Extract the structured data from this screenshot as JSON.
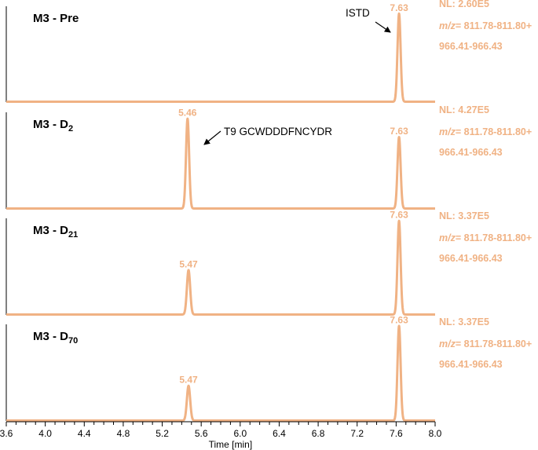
{
  "chart_data": {
    "type": "line",
    "xlabel": "Time [min]",
    "xlim": [
      3.6,
      8.0
    ],
    "x_ticks": [
      "3.6",
      "4.0",
      "4.4",
      "4.8",
      "5.2",
      "5.6",
      "6.0",
      "6.4",
      "6.8",
      "7.2",
      "7.6",
      "8.0"
    ],
    "line_color": "#f0b284",
    "panels": [
      {
        "label_main": "M3 - ",
        "label_sub": "",
        "label_tail": "Pre",
        "nl": "NL: 2.60E5",
        "mz_prefix": "m/z",
        "mz_range": "= 811.78-811.80+",
        "mz_range2": "966.41-966.43",
        "annotation": "ISTD",
        "peaks": [
          {
            "rt": 7.63,
            "label": "7.63",
            "height": 0.92,
            "width": 0.035
          }
        ]
      },
      {
        "label_main": "M3 - D",
        "label_sub": "2",
        "label_tail": "",
        "nl": "NL: 4.27E5",
        "mz_prefix": "m/z",
        "mz_range": "= 811.78-811.80+",
        "mz_range2": "966.41-966.43",
        "annotation": "T9 GCWDDDFNCYDR",
        "peaks": [
          {
            "rt": 5.46,
            "label": "5.46",
            "height": 0.93,
            "width": 0.035
          },
          {
            "rt": 7.63,
            "label": "7.63",
            "height": 0.74,
            "width": 0.035
          }
        ]
      },
      {
        "label_main": "M3 - D",
        "label_sub": "21",
        "label_tail": "",
        "nl": "NL: 3.37E5",
        "mz_prefix": "m/z",
        "mz_range": "= 811.78-811.80+",
        "mz_range2": "966.41-966.43",
        "annotation": "",
        "peaks": [
          {
            "rt": 5.47,
            "label": "5.47",
            "height": 0.46,
            "width": 0.037
          },
          {
            "rt": 7.63,
            "label": "7.63",
            "height": 0.97,
            "width": 0.035
          }
        ]
      },
      {
        "label_main": "M3 - D",
        "label_sub": "70",
        "label_tail": "",
        "nl": "NL: 3.37E5",
        "mz_prefix": "m/z",
        "mz_range": "= 811.78-811.80+",
        "mz_range2": "966.41-966.43",
        "annotation": "",
        "peaks": [
          {
            "rt": 5.47,
            "label": "5.47",
            "height": 0.36,
            "width": 0.037
          },
          {
            "rt": 7.63,
            "label": "7.63",
            "height": 0.98,
            "width": 0.035
          }
        ]
      }
    ]
  }
}
